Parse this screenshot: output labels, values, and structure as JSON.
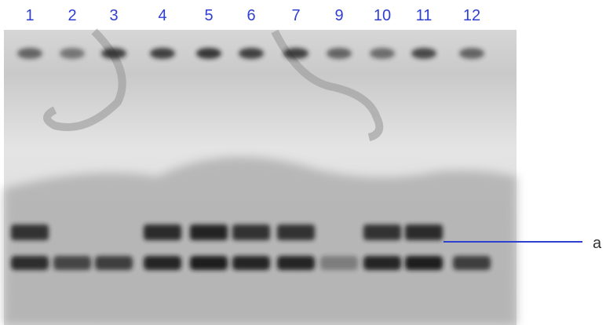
{
  "lanes": [
    "1",
    "2",
    "3",
    "4",
    "5",
    "6",
    "7",
    "9",
    "10",
    "11",
    "12"
  ],
  "annotation": "a"
}
